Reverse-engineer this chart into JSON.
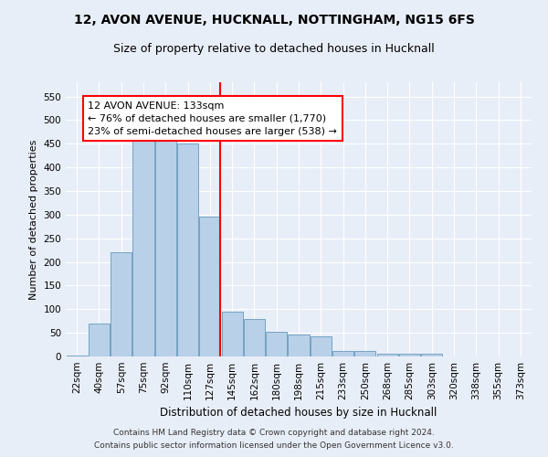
{
  "title1": "12, AVON AVENUE, HUCKNALL, NOTTINGHAM, NG15 6FS",
  "title2": "Size of property relative to detached houses in Hucknall",
  "xlabel": "Distribution of detached houses by size in Hucknall",
  "ylabel": "Number of detached properties",
  "categories": [
    "22sqm",
    "40sqm",
    "57sqm",
    "75sqm",
    "92sqm",
    "110sqm",
    "127sqm",
    "145sqm",
    "162sqm",
    "180sqm",
    "198sqm",
    "215sqm",
    "233sqm",
    "250sqm",
    "268sqm",
    "285sqm",
    "303sqm",
    "320sqm",
    "338sqm",
    "355sqm",
    "373sqm"
  ],
  "values": [
    2,
    70,
    220,
    475,
    478,
    450,
    295,
    95,
    80,
    53,
    46,
    42,
    12,
    12,
    5,
    5,
    5,
    0,
    0,
    0,
    0
  ],
  "bar_color": "#b8d0e8",
  "bar_edge_color": "#6699bb",
  "red_line_index": 6,
  "annotation_text": "12 AVON AVENUE: 133sqm\n← 76% of detached houses are smaller (1,770)\n23% of semi-detached houses are larger (538) →",
  "annotation_box_color": "white",
  "annotation_box_edge_color": "red",
  "ylim": [
    0,
    580
  ],
  "yticks": [
    0,
    50,
    100,
    150,
    200,
    250,
    300,
    350,
    400,
    450,
    500,
    550
  ],
  "footer_line1": "Contains HM Land Registry data © Crown copyright and database right 2024.",
  "footer_line2": "Contains public sector information licensed under the Open Government Licence v3.0.",
  "background_color": "#e8eef8",
  "grid_color": "white",
  "title1_fontsize": 10,
  "title2_fontsize": 9,
  "xlabel_fontsize": 8.5,
  "ylabel_fontsize": 8,
  "tick_fontsize": 7.5,
  "annotation_fontsize": 8,
  "footer_fontsize": 6.5
}
